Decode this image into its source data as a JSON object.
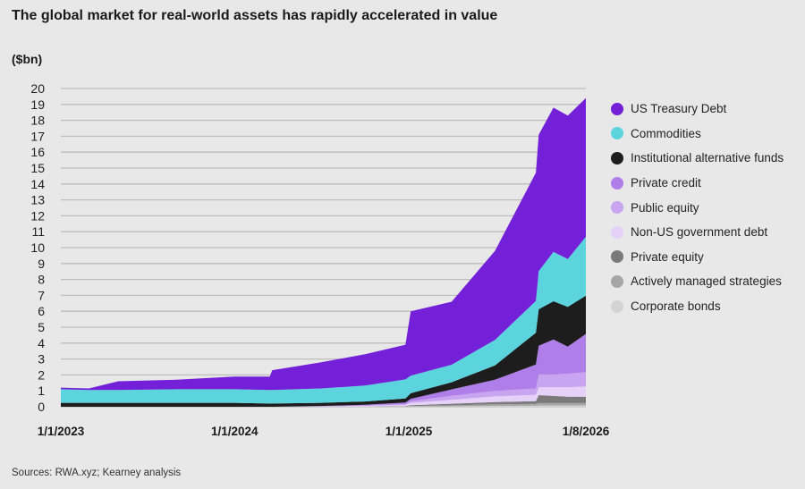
{
  "chart_data": {
    "type": "area",
    "stacked": true,
    "title": "The global market for real-world assets has rapidly accelerated in value",
    "ylabel": "($bn)",
    "ylim": [
      0,
      20
    ],
    "yticks": [
      0,
      1,
      2,
      3,
      4,
      5,
      6,
      7,
      8,
      9,
      10,
      11,
      12,
      13,
      14,
      15,
      16,
      17,
      18,
      19,
      20
    ],
    "xticks": [
      "1/1/2023",
      "1/1/2024",
      "1/1/2025",
      "1/8/2026"
    ],
    "xrange": [
      "2023-01-01",
      "2026-01-08"
    ],
    "grid": true,
    "legend_position": "right",
    "source": "Sources: RWA.xyz; Kearney analysis",
    "x": [
      "2023-01-01",
      "2023-03-01",
      "2023-05-01",
      "2023-09-01",
      "2024-01-01",
      "2024-03-15",
      "2024-03-20",
      "2024-07-01",
      "2024-10-01",
      "2024-12-25",
      "2025-01-05",
      "2025-04-01",
      "2025-07-01",
      "2025-09-25",
      "2025-10-01",
      "2025-11-01",
      "2025-12-01",
      "2026-01-08"
    ],
    "series": [
      {
        "name": "Corporate bonds",
        "color": "#d4d4d4",
        "values": [
          0,
          0,
          0,
          0,
          0,
          0,
          0,
          0,
          0.01,
          0.02,
          0.02,
          0.03,
          0.05,
          0.06,
          0.08,
          0.08,
          0.08,
          0.08
        ]
      },
      {
        "name": "Actively managed strategies",
        "color": "#a6a6a6",
        "values": [
          0,
          0,
          0,
          0,
          0,
          0,
          0,
          0,
          0,
          0,
          0.03,
          0.06,
          0.1,
          0.12,
          0.15,
          0.15,
          0.15,
          0.15
        ]
      },
      {
        "name": "Private equity",
        "color": "#7a7a7a",
        "values": [
          0,
          0,
          0,
          0,
          0,
          0,
          0,
          0,
          0,
          0.02,
          0.05,
          0.1,
          0.15,
          0.17,
          0.5,
          0.45,
          0.4,
          0.4
        ]
      },
      {
        "name": "Non-US government debt",
        "color": "#e6d2f8",
        "values": [
          0,
          0,
          0,
          0,
          0,
          0,
          0,
          0.03,
          0.05,
          0.08,
          0.15,
          0.25,
          0.35,
          0.4,
          0.5,
          0.55,
          0.6,
          0.65
        ]
      },
      {
        "name": "Public equity",
        "color": "#c9a4f0",
        "values": [
          0,
          0,
          0,
          0,
          0,
          0,
          0,
          0,
          0.02,
          0.05,
          0.1,
          0.25,
          0.35,
          0.4,
          0.8,
          0.8,
          0.85,
          0.9
        ]
      },
      {
        "name": "Private credit",
        "color": "#b07ee8",
        "values": [
          0,
          0,
          0,
          0,
          0,
          0,
          0,
          0.02,
          0.05,
          0.1,
          0.15,
          0.4,
          0.7,
          1.5,
          1.8,
          2.2,
          1.7,
          2.4
        ]
      },
      {
        "name": "Institutional alternative funds",
        "color": "#1d1d1d",
        "values": [
          0.25,
          0.25,
          0.25,
          0.25,
          0.25,
          0.2,
          0.2,
          0.2,
          0.2,
          0.25,
          0.35,
          0.45,
          0.9,
          2.0,
          2.3,
          2.4,
          2.5,
          2.4
        ]
      },
      {
        "name": "Commodities",
        "color": "#5cd4de",
        "values": [
          0.85,
          0.8,
          0.8,
          0.85,
          0.85,
          0.85,
          0.85,
          0.9,
          1.0,
          1.2,
          1.1,
          1.1,
          1.6,
          2.0,
          2.4,
          3.1,
          3.0,
          3.7
        ]
      },
      {
        "name": "US Treasury Debt",
        "color": "#7420d9",
        "values": [
          0.1,
          0.1,
          0.55,
          0.6,
          0.8,
          0.85,
          1.25,
          1.65,
          1.97,
          2.18,
          4.05,
          3.96,
          5.6,
          8.05,
          8.57,
          9.07,
          9.02,
          8.72
        ]
      }
    ]
  }
}
